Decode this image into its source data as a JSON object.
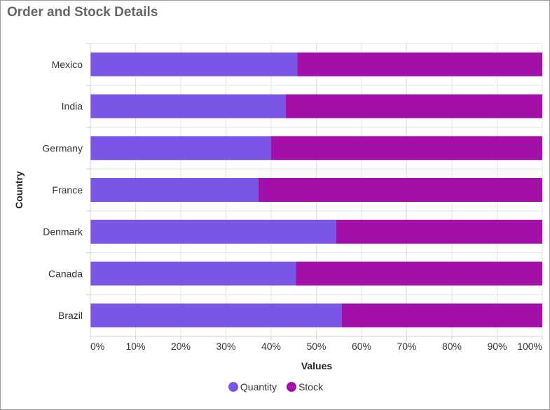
{
  "chart_data": {
    "type": "bar",
    "orientation": "horizontal",
    "stacking": "100%",
    "title": "Order and Stock Details",
    "xlabel": "Values",
    "ylabel": "Country",
    "categories": [
      "Mexico",
      "India",
      "Germany",
      "France",
      "Denmark",
      "Canada",
      "Brazil"
    ],
    "series": [
      {
        "name": "Quantity",
        "color": "#7b55e6",
        "values": [
          45.8,
          43.2,
          40.0,
          37.2,
          54.4,
          45.5,
          55.6
        ]
      },
      {
        "name": "Stock",
        "color": "#a20fa9",
        "values": [
          54.2,
          56.8,
          60.0,
          62.8,
          45.6,
          54.5,
          44.4
        ]
      }
    ],
    "xlim": [
      0,
      100
    ],
    "xticks": [
      "0%",
      "10%",
      "20%",
      "30%",
      "40%",
      "50%",
      "60%",
      "70%",
      "80%",
      "90%",
      "100%"
    ],
    "grid": true,
    "legend_position": "bottom-center"
  }
}
